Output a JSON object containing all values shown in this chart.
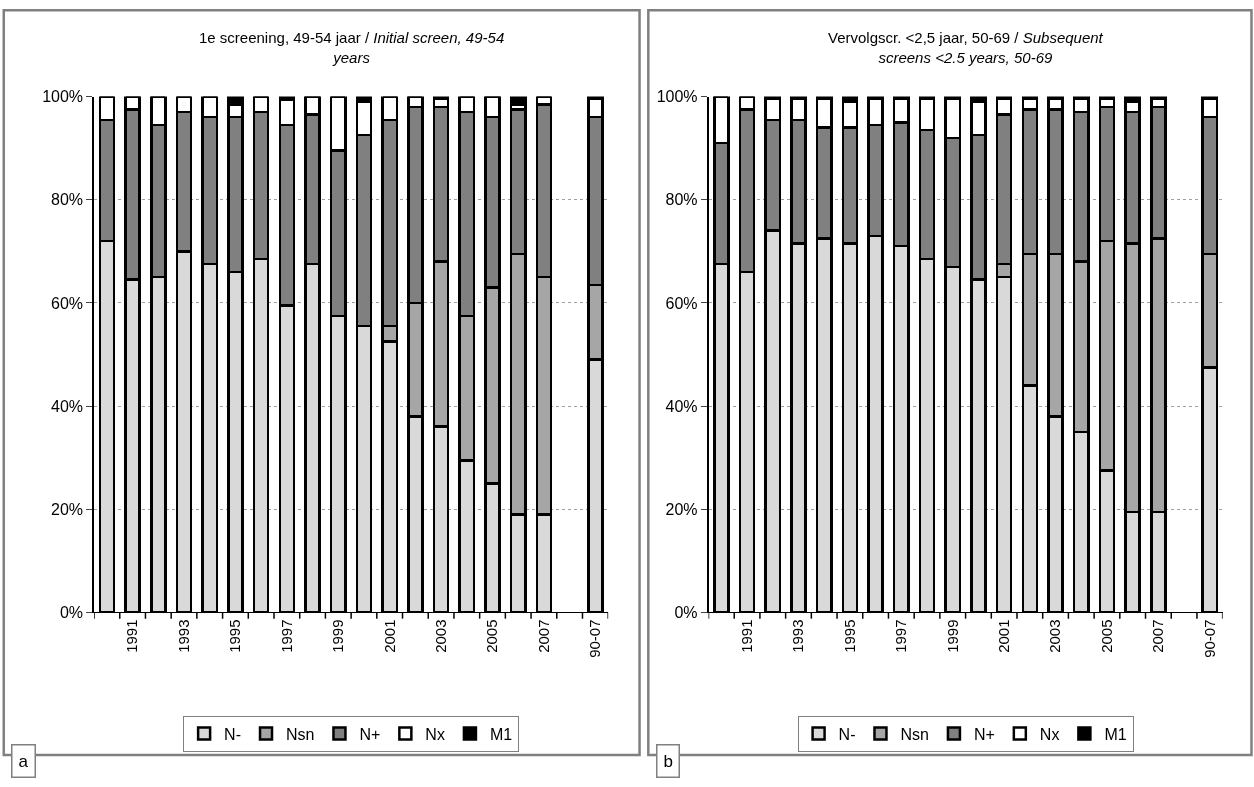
{
  "chart_data": [
    {
      "type": "bar",
      "stacked": true,
      "title": "1e screening, 49-54 jaar / Initial screen, 49-54 years",
      "categories": [
        null,
        "1991",
        null,
        "1993",
        null,
        "1995",
        null,
        "1997",
        null,
        "1999",
        null,
        "2001",
        null,
        "2003",
        null,
        "2005",
        null,
        "2007",
        null,
        "90-07"
      ],
      "series": [
        {
          "name": "N-",
          "color": "#d9d9d9",
          "values": [
            72,
            64.5,
            65,
            70,
            67.5,
            66,
            68.5,
            59.5,
            67.5,
            57.5,
            55.5,
            52.5,
            38,
            36,
            29.5,
            25,
            19,
            19,
            null,
            49
          ]
        },
        {
          "name": "Nsn",
          "color": "#a6a6a6",
          "values": [
            0,
            0,
            0,
            0,
            0,
            0,
            0,
            0,
            0,
            0,
            0,
            3,
            22,
            32,
            28,
            38,
            50.5,
            46,
            null,
            14.5
          ]
        },
        {
          "name": "N+",
          "color": "#808080",
          "values": [
            23.5,
            33,
            29.5,
            27,
            28.5,
            30,
            28.5,
            35,
            29,
            32,
            37,
            40,
            38,
            30,
            39.5,
            33,
            28,
            33.5,
            null,
            32.5
          ]
        },
        {
          "name": "Nx",
          "color": "#ffffff",
          "values": [
            4.5,
            2.5,
            5.5,
            3,
            4,
            2.5,
            3,
            4.8,
            3.5,
            10.5,
            6.5,
            4.5,
            2,
            1.5,
            3,
            4,
            1,
            1.5,
            null,
            3.5
          ]
        },
        {
          "name": "M1",
          "color": "#000000",
          "values": [
            0,
            0,
            0,
            0,
            0,
            1.5,
            0,
            0.7,
            0,
            0,
            1,
            0,
            0,
            0.5,
            0,
            0,
            1.5,
            0,
            null,
            0.5
          ]
        }
      ],
      "ylim": [
        0,
        100
      ],
      "yticks": [
        {
          "value": 0,
          "label": "0%"
        },
        {
          "value": 20,
          "label": "20%"
        },
        {
          "value": 40,
          "label": "40%"
        },
        {
          "value": 60,
          "label": "60%"
        },
        {
          "value": 80,
          "label": "80%"
        },
        {
          "value": 100,
          "label": "100%"
        }
      ],
      "grid": "y",
      "legend": "bottom",
      "annotations": [
        "a"
      ]
    },
    {
      "type": "bar",
      "stacked": true,
      "title": "Vervolgscr. <2,5 jaar, 50-69 / Subsequent screens <2.5 years, 50-69",
      "categories": [
        null,
        "1991",
        null,
        "1993",
        null,
        "1995",
        null,
        "1997",
        null,
        "1999",
        null,
        "2001",
        null,
        "2003",
        null,
        "2005",
        null,
        "2007",
        null,
        "90-07"
      ],
      "series": [
        {
          "name": "N-",
          "color": "#d9d9d9",
          "values": [
            67.5,
            66,
            74,
            71.5,
            72.5,
            71.5,
            73,
            71,
            68.5,
            67,
            64.5,
            65,
            44,
            38,
            35,
            27.5,
            19.5,
            19.5,
            null,
            47.5
          ]
        },
        {
          "name": "Nsn",
          "color": "#a6a6a6",
          "values": [
            0,
            0,
            0,
            0,
            0,
            0,
            0,
            0,
            0,
            0,
            0,
            2.5,
            25.5,
            31.5,
            33,
            44.5,
            52,
            53,
            null,
            22
          ]
        },
        {
          "name": "N+",
          "color": "#808080",
          "values": [
            23.5,
            31.5,
            21.5,
            24,
            21.5,
            22.5,
            21.5,
            24,
            25,
            25,
            28,
            29,
            28,
            28,
            29,
            26,
            25.5,
            25.5,
            null,
            26.5
          ]
        },
        {
          "name": "Nx",
          "color": "#ffffff",
          "values": [
            9,
            2.5,
            4,
            4,
            5.5,
            5,
            5,
            4.5,
            6,
            7.5,
            6.5,
            3,
            2,
            2,
            2.5,
            1.5,
            2,
            1.5,
            null,
            3.5
          ]
        },
        {
          "name": "M1",
          "color": "#000000",
          "values": [
            0,
            0,
            0.5,
            0.5,
            0.5,
            1,
            0.5,
            0.5,
            0.5,
            0.5,
            1,
            0.5,
            0.5,
            0.5,
            0.5,
            0.5,
            1,
            0.5,
            null,
            0.5
          ]
        }
      ],
      "ylim": [
        0,
        100
      ],
      "yticks": [
        {
          "value": 0,
          "label": "0%"
        },
        {
          "value": 20,
          "label": "20%"
        },
        {
          "value": 40,
          "label": "40%"
        },
        {
          "value": 60,
          "label": "60%"
        },
        {
          "value": 80,
          "label": "80%"
        },
        {
          "value": 100,
          "label": "100%"
        }
      ],
      "grid": "y",
      "legend": "bottom",
      "annotations": [
        "b"
      ]
    }
  ]
}
